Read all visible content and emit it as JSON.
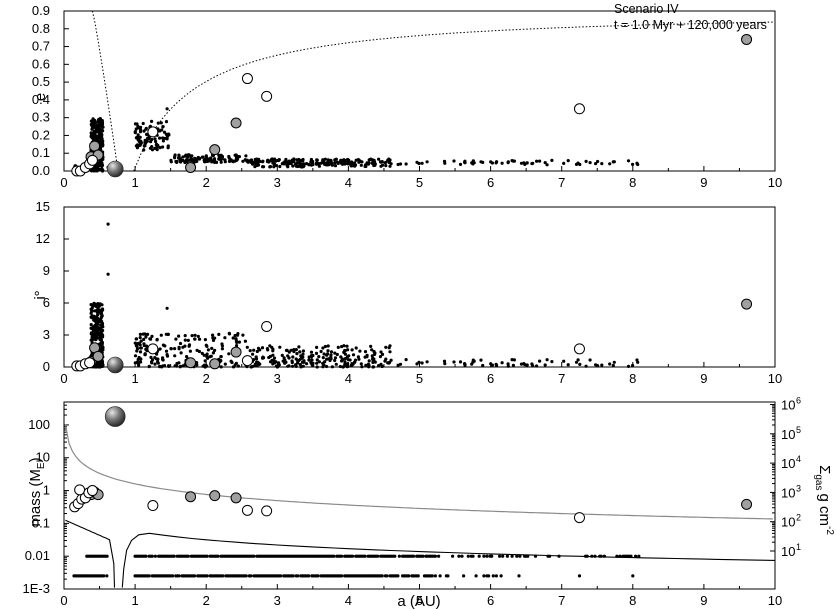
{
  "annotation": {
    "scenario": "Scenario IV",
    "time": "t = 1.0 Myr + 120,000 years"
  },
  "chart_data": [
    {
      "type": "scatter",
      "ylabel": "e",
      "xlim": [
        0,
        10
      ],
      "ylim": [
        0,
        0.9
      ],
      "grid": false,
      "x_ticks": [
        "0",
        "1",
        "2",
        "3",
        "4",
        "5",
        "6",
        "7",
        "8",
        "9",
        "10"
      ],
      "y_ticks": [
        "0.0",
        "0.1",
        "0.2",
        "0.3",
        "0.4",
        "0.5",
        "0.6",
        "0.7",
        "0.8",
        "0.9"
      ],
      "giant": [
        {
          "a": 0.72,
          "e": 0.0
        }
      ],
      "gray_bodies": [
        {
          "a": 0.38,
          "e": 0.08
        },
        {
          "a": 0.43,
          "e": 0.14
        },
        {
          "a": 0.48,
          "e": 0.09
        },
        {
          "a": 1.78,
          "e": 0.02
        },
        {
          "a": 2.12,
          "e": 0.12
        },
        {
          "a": 2.42,
          "e": 0.27
        },
        {
          "a": 9.6,
          "e": 0.74
        }
      ],
      "open_bodies": [
        {
          "a": 0.18,
          "e": 0.0
        },
        {
          "a": 0.23,
          "e": 0.0
        },
        {
          "a": 0.3,
          "e": 0.02
        },
        {
          "a": 0.36,
          "e": 0.04
        },
        {
          "a": 0.4,
          "e": 0.06
        },
        {
          "a": 1.25,
          "e": 0.22
        },
        {
          "a": 2.58,
          "e": 0.52
        },
        {
          "a": 2.85,
          "e": 0.42
        },
        {
          "a": 7.25,
          "e": 0.35
        }
      ],
      "curves": [
        "dotted inner boundary from (0.4, 0.9) to (0.75, 0.0)",
        "dotted outer boundary rising from (1.0, 0.0) toward (10, 0.9)"
      ]
    },
    {
      "type": "scatter",
      "ylabel": "i°",
      "xlim": [
        0,
        10
      ],
      "ylim": [
        0,
        15
      ],
      "grid": false,
      "x_ticks": [
        "0",
        "1",
        "2",
        "3",
        "4",
        "5",
        "6",
        "7",
        "8",
        "9",
        "10"
      ],
      "y_ticks": [
        "0",
        "3",
        "6",
        "9",
        "12",
        "15"
      ],
      "giant": [
        {
          "a": 0.72,
          "i": 0.1
        }
      ],
      "gray_bodies": [
        {
          "a": 0.38,
          "i": 0.5
        },
        {
          "a": 0.43,
          "i": 1.8
        },
        {
          "a": 0.48,
          "i": 1.0
        },
        {
          "a": 1.78,
          "i": 0.4
        },
        {
          "a": 2.12,
          "i": 0.3
        },
        {
          "a": 2.42,
          "i": 1.4
        },
        {
          "a": 9.6,
          "i": 5.9
        }
      ],
      "open_bodies": [
        {
          "a": 0.18,
          "i": 0.1
        },
        {
          "a": 0.23,
          "i": 0.1
        },
        {
          "a": 0.3,
          "i": 0.3
        },
        {
          "a": 0.36,
          "i": 0.4
        },
        {
          "a": 1.25,
          "i": 1.7
        },
        {
          "a": 2.58,
          "i": 0.6
        },
        {
          "a": 2.85,
          "i": 3.8
        },
        {
          "a": 7.25,
          "i": 1.7
        }
      ]
    },
    {
      "type": "scatter",
      "xlabel": "a (AU)",
      "ylabel": "mass (M",
      "ylabel_sub": "E",
      "ylabel_end": ")",
      "y2label": "Σ",
      "y2label_sub": "gas",
      "y2label_unit": "g cm",
      "y2label_sup": "-2",
      "xlim": [
        0,
        10
      ],
      "ylim": [
        0.001,
        500
      ],
      "yscale": "log",
      "y2scale": "log",
      "grid": false,
      "x_ticks": [
        "0",
        "1",
        "2",
        "3",
        "4",
        "5",
        "6",
        "7",
        "8",
        "9",
        "10"
      ],
      "y_ticks": [
        {
          "v": 0.001,
          "label": "1E-3"
        },
        {
          "v": 0.01,
          "label": "0.01"
        },
        {
          "v": 0.1,
          "label": "0.1"
        },
        {
          "v": 1,
          "label": "1"
        },
        {
          "v": 10,
          "label": "10"
        },
        {
          "v": 100,
          "label": "100"
        }
      ],
      "y2_ticks": [
        {
          "base": "10",
          "exp": "1"
        },
        {
          "base": "10",
          "exp": "2"
        },
        {
          "base": "10",
          "exp": "3"
        },
        {
          "base": "10",
          "exp": "4"
        },
        {
          "base": "10",
          "exp": "5"
        },
        {
          "base": "10",
          "exp": "6"
        }
      ],
      "giant": [
        {
          "a": 0.72,
          "m": 180
        }
      ],
      "gray_bodies": [
        {
          "a": 0.38,
          "m": 0.75
        },
        {
          "a": 0.43,
          "m": 0.9
        },
        {
          "a": 0.48,
          "m": 0.75
        },
        {
          "a": 1.78,
          "m": 0.65
        },
        {
          "a": 2.12,
          "m": 0.7
        },
        {
          "a": 2.42,
          "m": 0.6
        },
        {
          "a": 9.6,
          "m": 0.38
        }
      ],
      "open_bodies": [
        {
          "a": 0.15,
          "m": 0.32
        },
        {
          "a": 0.2,
          "m": 0.4
        },
        {
          "a": 0.25,
          "m": 0.55
        },
        {
          "a": 0.3,
          "m": 0.6
        },
        {
          "a": 0.22,
          "m": 1.05
        },
        {
          "a": 0.35,
          "m": 0.85
        },
        {
          "a": 0.4,
          "m": 1.0
        },
        {
          "a": 1.25,
          "m": 0.35
        },
        {
          "a": 2.58,
          "m": 0.25
        },
        {
          "a": 2.85,
          "m": 0.24
        },
        {
          "a": 7.25,
          "m": 0.15
        }
      ],
      "particle_rows": [
        0.01,
        0.0025
      ],
      "curves": [
        "gray gas surface density profile",
        "black mass profile with gap near 0.75 AU"
      ]
    }
  ]
}
